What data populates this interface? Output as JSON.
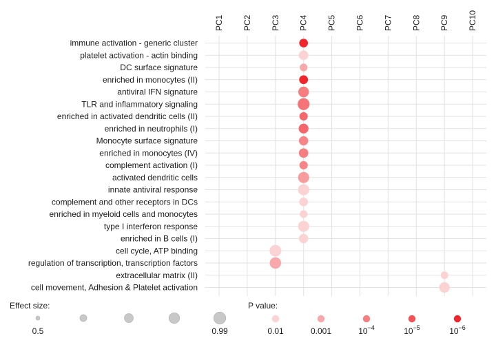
{
  "chart_data": {
    "type": "scatter",
    "columns": [
      "PC1",
      "PC2",
      "PC3",
      "PC4",
      "PC5",
      "PC6",
      "PC7",
      "PC8",
      "PC9",
      "PC10"
    ],
    "rows": [
      "immune activation - generic cluster",
      "platelet activation - actin binding",
      "DC surface signature",
      "enriched in monocytes (II)",
      "antiviral IFN signature",
      "TLR and inflammatory signaling",
      "enriched in activated dendritic cells (II)",
      "enriched in neutrophils (I)",
      "Monocyte surface signature",
      "enriched in monocytes (IV)",
      "complement activation (I)",
      "activated dendritic cells",
      "innate antiviral response",
      "complement and other receptors in DCs",
      "enriched in myeloid cells and monocytes",
      "type I interferon response",
      "enriched in B cells (I)",
      "cell cycle, ATP binding",
      "regulation of transcription, transcription factors",
      "extracellular matrix (II)",
      "cell movement, Adhesion & Platelet activation"
    ],
    "points": [
      {
        "row": "immune activation - generic cluster",
        "column": "PC4",
        "effect_size": 0.72,
        "log10_p": -6.0
      },
      {
        "row": "platelet activation - actin binding",
        "column": "PC4",
        "effect_size": 0.78,
        "log10_p": -2.0
      },
      {
        "row": "DC surface signature",
        "column": "PC4",
        "effect_size": 0.66,
        "log10_p": -3.0
      },
      {
        "row": "enriched in monocytes (II)",
        "column": "PC4",
        "effect_size": 0.73,
        "log10_p": -6.0
      },
      {
        "row": "antiviral IFN signature",
        "column": "PC4",
        "effect_size": 0.86,
        "log10_p": -4.0
      },
      {
        "row": "TLR and inflammatory signaling",
        "column": "PC4",
        "effect_size": 0.97,
        "log10_p": -4.2
      },
      {
        "row": "enriched in activated dendritic cells (II)",
        "column": "PC4",
        "effect_size": 0.7,
        "log10_p": -4.5
      },
      {
        "row": "enriched in neutrophils (I)",
        "column": "PC4",
        "effect_size": 0.8,
        "log10_p": -4.5
      },
      {
        "row": "Monocyte surface signature",
        "column": "PC4",
        "effect_size": 0.76,
        "log10_p": -3.8
      },
      {
        "row": "enriched in monocytes (IV)",
        "column": "PC4",
        "effect_size": 0.77,
        "log10_p": -4.0
      },
      {
        "row": "complement activation (I)",
        "column": "PC4",
        "effect_size": 0.7,
        "log10_p": -3.8
      },
      {
        "row": "activated dendritic cells",
        "column": "PC4",
        "effect_size": 0.9,
        "log10_p": -3.3
      },
      {
        "row": "innate antiviral response",
        "column": "PC4",
        "effect_size": 0.9,
        "log10_p": -2.0
      },
      {
        "row": "complement and other receptors in DCs",
        "column": "PC4",
        "effect_size": 0.72,
        "log10_p": -2.0
      },
      {
        "row": "enriched in myeloid cells and monocytes",
        "column": "PC4",
        "effect_size": 0.66,
        "log10_p": -2.0
      },
      {
        "row": "type I interferon response",
        "column": "PC4",
        "effect_size": 0.9,
        "log10_p": -2.0
      },
      {
        "row": "enriched in B cells (I)",
        "column": "PC4",
        "effect_size": 0.76,
        "log10_p": -2.0
      },
      {
        "row": "cell cycle, ATP binding",
        "column": "PC3",
        "effect_size": 0.95,
        "log10_p": -2.0
      },
      {
        "row": "regulation of transcription, transcription factors",
        "column": "PC3",
        "effect_size": 0.93,
        "log10_p": -3.0
      },
      {
        "row": "extracellular matrix (II)",
        "column": "PC9",
        "effect_size": 0.65,
        "log10_p": -2.0
      },
      {
        "row": "cell movement, Adhesion & Platelet activation",
        "column": "PC9",
        "effect_size": 0.85,
        "log10_p": -2.0
      }
    ],
    "effect_size_range": [
      0.5,
      0.99
    ],
    "log10_p_range": [
      -6,
      -2
    ],
    "grid": true,
    "legend_position": "bottom"
  },
  "legend": {
    "effect": {
      "title": "Effect size:",
      "values": [
        0.5,
        0.62,
        0.74,
        0.87,
        0.99
      ],
      "labels": [
        "0.5",
        "",
        "",
        "",
        "0.99"
      ]
    },
    "pvalue": {
      "title": "P value:",
      "items": [
        {
          "log10_p": -2,
          "label": "0.01"
        },
        {
          "log10_p": -3,
          "label": "0.001"
        },
        {
          "log10_p": -4,
          "base": "10",
          "exponent": "−4"
        },
        {
          "log10_p": -5,
          "base": "10",
          "exponent": "−5"
        },
        {
          "log10_p": -6,
          "base": "10",
          "exponent": "−6"
        }
      ]
    }
  },
  "colors": {
    "significant": "#f0262c",
    "weak": "#fcd3d3",
    "effect_legend": "#c8c8c8",
    "grid": "#e2e2e2"
  }
}
